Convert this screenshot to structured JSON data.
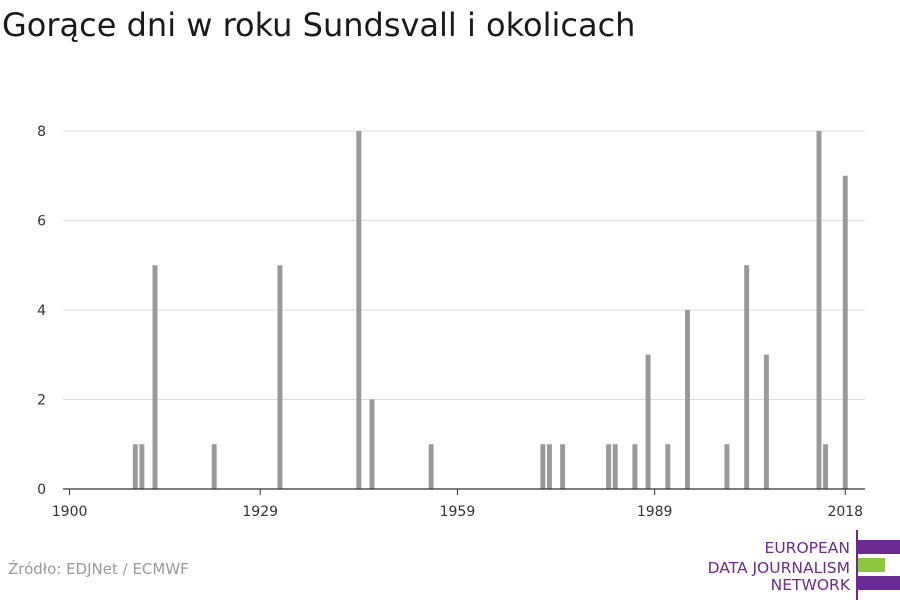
{
  "chart_data": {
    "type": "bar",
    "title": "Gorące dni w roku Sundsvall i okolicach",
    "xlabel": "",
    "ylabel": "",
    "x_range": [
      1899,
      2021
    ],
    "ylim": [
      0,
      8
    ],
    "y_ticks": [
      0,
      2,
      4,
      6,
      8
    ],
    "x_ticks": [
      1900,
      1929,
      1959,
      1989,
      2018
    ],
    "grid": true,
    "bar_color": "#999999",
    "points": [
      {
        "year": 1910,
        "value": 1
      },
      {
        "year": 1911,
        "value": 1
      },
      {
        "year": 1913,
        "value": 5
      },
      {
        "year": 1922,
        "value": 1
      },
      {
        "year": 1932,
        "value": 5
      },
      {
        "year": 1944,
        "value": 8
      },
      {
        "year": 1946,
        "value": 2
      },
      {
        "year": 1955,
        "value": 1
      },
      {
        "year": 1972,
        "value": 1
      },
      {
        "year": 1973,
        "value": 1
      },
      {
        "year": 1975,
        "value": 1
      },
      {
        "year": 1982,
        "value": 1
      },
      {
        "year": 1983,
        "value": 1
      },
      {
        "year": 1986,
        "value": 1
      },
      {
        "year": 1988,
        "value": 3
      },
      {
        "year": 1991,
        "value": 1
      },
      {
        "year": 1994,
        "value": 4
      },
      {
        "year": 2000,
        "value": 1
      },
      {
        "year": 2003,
        "value": 5
      },
      {
        "year": 2006,
        "value": 3
      },
      {
        "year": 2014,
        "value": 8
      },
      {
        "year": 2015,
        "value": 1
      },
      {
        "year": 2018,
        "value": 7
      }
    ]
  },
  "source": "Źródło: EDJNet / ECMWF",
  "logo": {
    "lines": [
      "EUROPEAN",
      "DATA JOURNALISM",
      "NETWORK"
    ],
    "colors": {
      "primary": "#6a2c91",
      "accent": "#8dc63f"
    }
  }
}
